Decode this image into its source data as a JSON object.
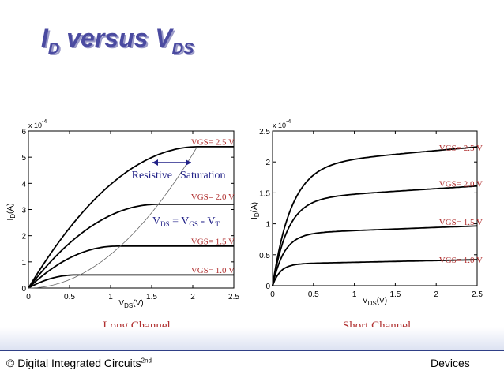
{
  "slide": {
    "title_main": "I",
    "title_sub1": "D",
    "title_mid": " versus V",
    "title_sub2": "DS",
    "footer_left": "© Digital Integrated Circuits",
    "footer_sup": "2nd",
    "footer_right": "Devices"
  },
  "colors": {
    "accent_title": "#4a4aa0",
    "annotation_red": "#b03030",
    "annotation_blue": "#222288",
    "footer_line": "#2f3f86"
  },
  "chart_data": [
    {
      "type": "line",
      "caption": "Long Channel",
      "x_title": "V",
      "x_title_sub": "DS",
      "x_title_unit": "(V)",
      "y_title": "I",
      "y_title_sub": "D",
      "y_title_unit": "(A)",
      "y_exponent_label": "x 10",
      "y_exponent": "-4",
      "x_ticks": [
        "0",
        "0.5",
        "1",
        "1.5",
        "2",
        "2.5"
      ],
      "y_ticks": [
        "0",
        "1",
        "2",
        "3",
        "4",
        "5",
        "6"
      ],
      "xlim": [
        0,
        2.5
      ],
      "ylim": [
        0,
        6
      ],
      "series": [
        {
          "name": "VGS= 1.0 V",
          "vgs": 1.0,
          "vt": 0.43,
          "sat_current": 0.5
        },
        {
          "name": "VGS= 1.5 V",
          "vgs": 1.5,
          "vt": 0.43,
          "sat_current": 1.6
        },
        {
          "name": "VGS= 2.0 V",
          "vgs": 2.0,
          "vt": 0.43,
          "sat_current": 3.2
        },
        {
          "name": "VGS= 2.5 V",
          "vgs": 2.5,
          "vt": 0.43,
          "sat_current": 5.4
        }
      ],
      "label_positions_y": [
        0.7,
        1.8,
        3.5,
        5.6
      ],
      "boundary": {
        "name": "VDS = VGS - VT",
        "k": 1.28
      },
      "annotations": {
        "resistive": "Resistive",
        "saturation": "Saturation",
        "eq_v1": "V",
        "eq_sub1": "DS",
        "eq_mid": " = V",
        "eq_sub2": "GS",
        "eq_mid2": " - V",
        "eq_sub3": "T"
      }
    },
    {
      "type": "line",
      "caption": "Short Channel",
      "x_title": "V",
      "x_title_sub": "DS",
      "x_title_unit": "(V)",
      "y_title": "I",
      "y_title_sub": "D",
      "y_title_unit": "(A)",
      "y_exponent_label": "x 10",
      "y_exponent": "-4",
      "x_ticks": [
        "0",
        "0.5",
        "1",
        "1.5",
        "2",
        "2.5"
      ],
      "y_ticks": [
        "0",
        "0.5",
        "1",
        "1.5",
        "2",
        "2.5"
      ],
      "xlim": [
        0,
        2.5
      ],
      "ylim": [
        0,
        2.5
      ],
      "series": [
        {
          "name": "VGS= 1.0 V",
          "sat_current": 0.35,
          "vdsat": 0.28,
          "lambda": 0.08
        },
        {
          "name": "VGS= 1.5 V",
          "sat_current": 0.84,
          "vdsat": 0.42,
          "lambda": 0.06
        },
        {
          "name": "VGS= 2.0 V",
          "sat_current": 1.4,
          "vdsat": 0.55,
          "lambda": 0.06
        },
        {
          "name": "VGS= 2.5 V",
          "sat_current": 1.95,
          "vdsat": 0.68,
          "lambda": 0.06
        }
      ],
      "label_positions_y": [
        0.42,
        1.03,
        1.65,
        2.23
      ]
    }
  ]
}
